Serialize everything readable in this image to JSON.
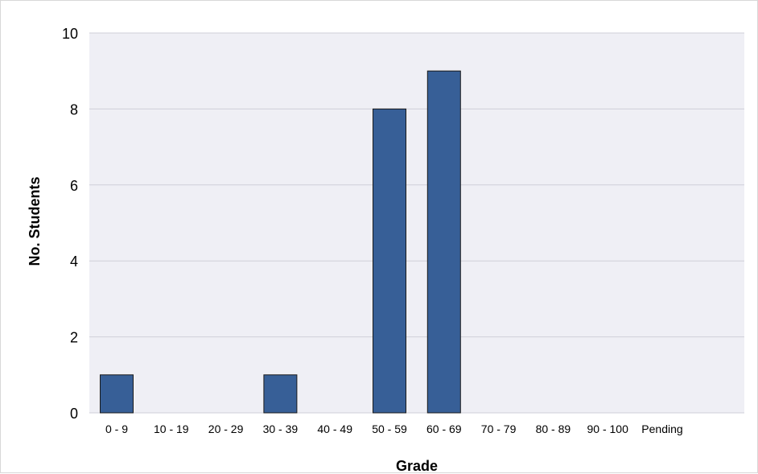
{
  "chart_data": {
    "type": "bar",
    "categories": [
      "0 - 9",
      "10 - 19",
      "20 - 29",
      "30 - 39",
      "40 - 49",
      "50 - 59",
      "60 - 69",
      "70 - 79",
      "80 - 89",
      "90 - 100",
      "Pending"
    ],
    "values": [
      1,
      0,
      0,
      1,
      0,
      8,
      9,
      0,
      0,
      0,
      0
    ],
    "title": "",
    "xlabel": "Grade",
    "ylabel": "No. Students",
    "ylim": [
      0,
      10
    ],
    "yticks": [
      0,
      2,
      4,
      6,
      8,
      10
    ],
    "grid": true,
    "legend": "none",
    "colors": {
      "bar": "#375f97",
      "bar_edge": "#1a1a1a",
      "plot_bg": "#efeff5",
      "grid": "#cfcfd8"
    }
  }
}
